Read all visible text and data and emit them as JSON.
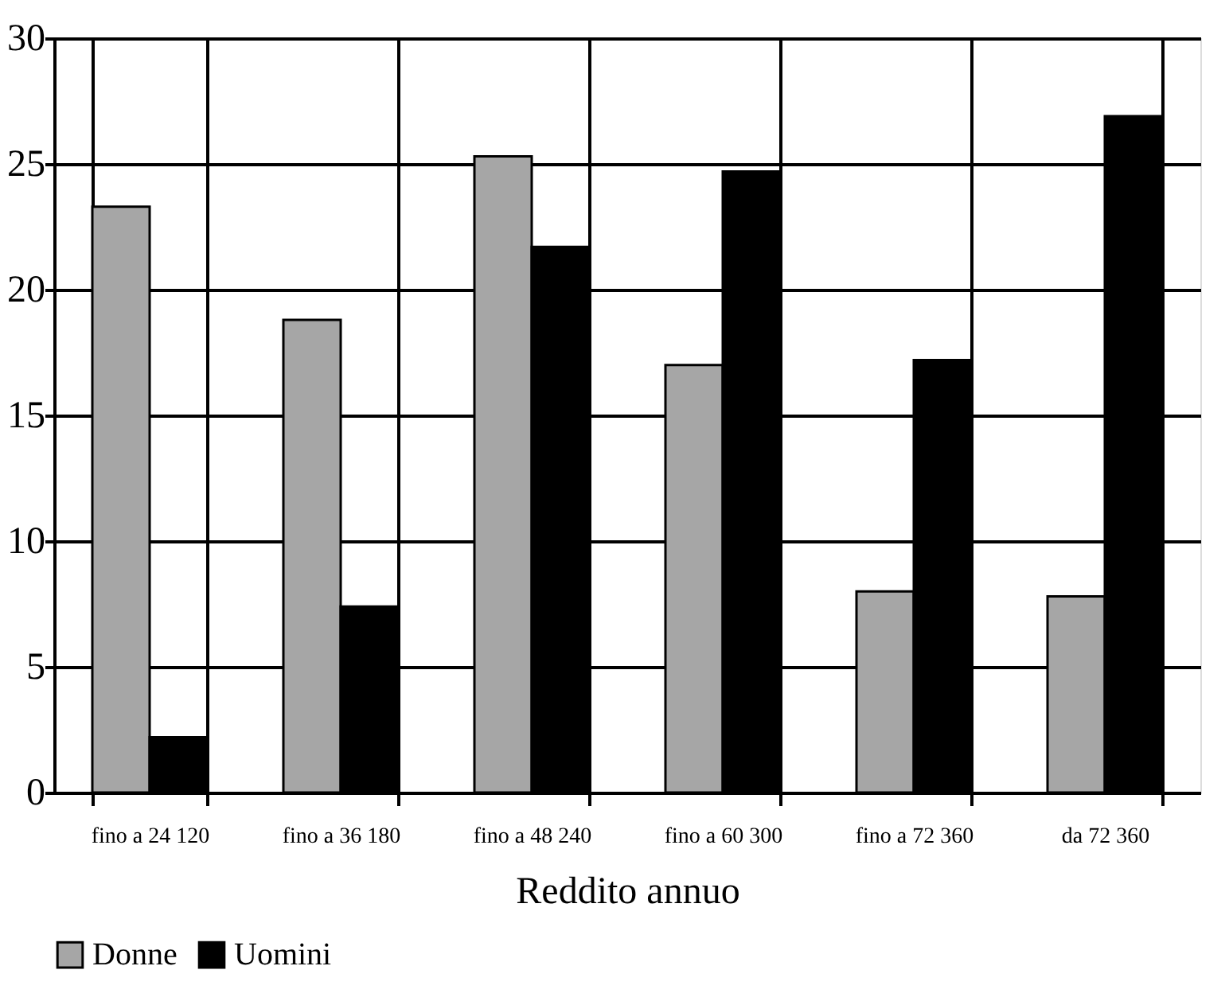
{
  "chart_data": {
    "type": "bar",
    "xlabel": "Reddito annuo",
    "categories": [
      "fino a 24 120",
      "fino a 36 180",
      "fino a 48 240",
      "fino a 60 300",
      "fino a 72 360",
      "da 72 360"
    ],
    "series": [
      {
        "name": "Donne",
        "color": "#a6a6a6",
        "values": [
          23.3,
          18.8,
          25.3,
          17.0,
          8.0,
          7.8
        ]
      },
      {
        "name": "Uomini",
        "color": "#000000",
        "values": [
          2.2,
          7.4,
          21.7,
          24.7,
          17.2,
          26.9
        ]
      }
    ],
    "ylim": [
      0,
      30
    ],
    "yticks": [
      0,
      5,
      10,
      15,
      20,
      25,
      30
    ],
    "grid": true,
    "legend": "bottom"
  }
}
